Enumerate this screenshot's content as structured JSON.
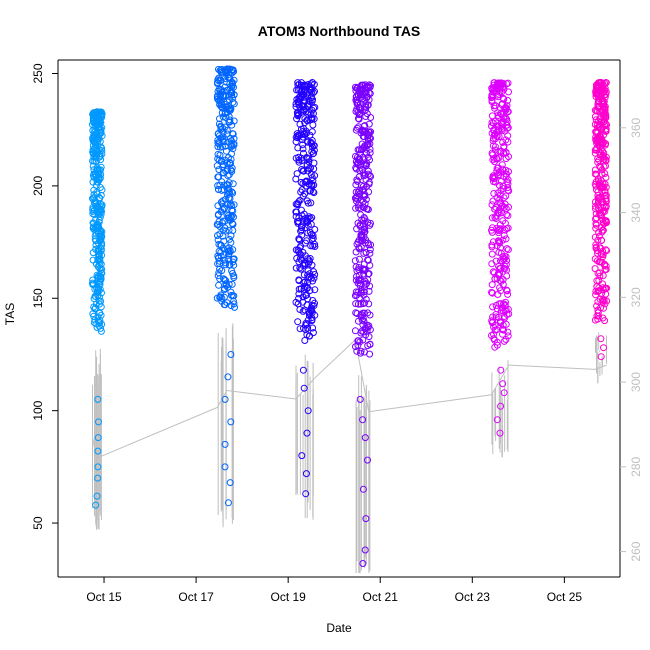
{
  "chart_data": {
    "type": "scatter",
    "title": "ATOM3 Northbound TAS",
    "xlabel": "Date",
    "ylabel": "TAS",
    "x_ticks": [
      "Oct 15",
      "Oct 17",
      "Oct 19",
      "Oct 21",
      "Oct 23",
      "Oct 25"
    ],
    "xlim": [
      "2014-10-14T00:00",
      "2014-10-26T05:00"
    ],
    "ylim_left": [
      26,
      256
    ],
    "yticks_left": [
      50,
      100,
      150,
      200,
      250
    ],
    "ylim_right": [
      254,
      376
    ],
    "yticks_right": [
      260,
      280,
      300,
      320,
      340,
      360
    ],
    "grid": false,
    "legend": "none",
    "series": [
      {
        "color": "#0099ff",
        "time_range": [
          "2014-10-14T18:00",
          "2014-10-14T23:00"
        ],
        "values_range": [
          58,
          233
        ],
        "dense_range": [
          135,
          233
        ],
        "outliers": [
          58,
          62,
          70,
          75,
          82,
          88,
          95,
          105
        ]
      },
      {
        "color": "#0066ff",
        "time_range": [
          "2014-10-17T11:00",
          "2014-10-17T20:00"
        ],
        "values_range": [
          59,
          252
        ],
        "dense_range": [
          145,
          252
        ],
        "outliers": [
          59,
          68,
          75,
          85,
          95,
          105,
          115,
          125
        ]
      },
      {
        "color": "#2200ff",
        "time_range": [
          "2014-10-19T04:00",
          "2014-10-19T14:00"
        ],
        "values_range": [
          63,
          246
        ],
        "dense_range": [
          130,
          246
        ],
        "outliers": [
          63,
          72,
          80,
          90,
          100,
          110,
          118
        ]
      },
      {
        "color": "#7a00ff",
        "time_range": [
          "2014-10-20T11:00",
          "2014-10-20T19:00"
        ],
        "values_range": [
          32,
          245
        ],
        "dense_range": [
          125,
          245
        ],
        "outliers": [
          32,
          38,
          52,
          65,
          78,
          88,
          96,
          105
        ]
      },
      {
        "color": "#dd00ff",
        "time_range": [
          "2014-10-23T10:00",
          "2014-10-23T19:00"
        ],
        "values_range": [
          90,
          246
        ],
        "dense_range": [
          128,
          246
        ],
        "outliers": [
          90,
          96,
          102,
          108,
          112,
          118
        ]
      },
      {
        "color": "#ff00cc",
        "time_range": [
          "2014-10-25T16:00",
          "2014-10-25T22:00"
        ],
        "values_range": [
          124,
          246
        ],
        "dense_range": [
          140,
          246
        ],
        "outliers": [
          124,
          128,
          132
        ]
      }
    ],
    "line_series": {
      "color": "#bfbfbf",
      "axis": "right",
      "points": [
        [
          "2014-10-14T18:00",
          287
        ],
        [
          "2014-10-14T20:00",
          282
        ],
        [
          "2014-10-17T11:00",
          294
        ],
        [
          "2014-10-17T16:00",
          298
        ],
        [
          "2014-10-19T04:00",
          296
        ],
        [
          "2014-10-19T14:00",
          301
        ],
        [
          "2014-10-20T11:00",
          310
        ],
        [
          "2014-10-20T18:00",
          293
        ],
        [
          "2014-10-23T10:00",
          297
        ],
        [
          "2014-10-23T19:00",
          304
        ],
        [
          "2014-10-25T16:00",
          303
        ],
        [
          "2014-10-25T22:00",
          304
        ]
      ]
    }
  }
}
